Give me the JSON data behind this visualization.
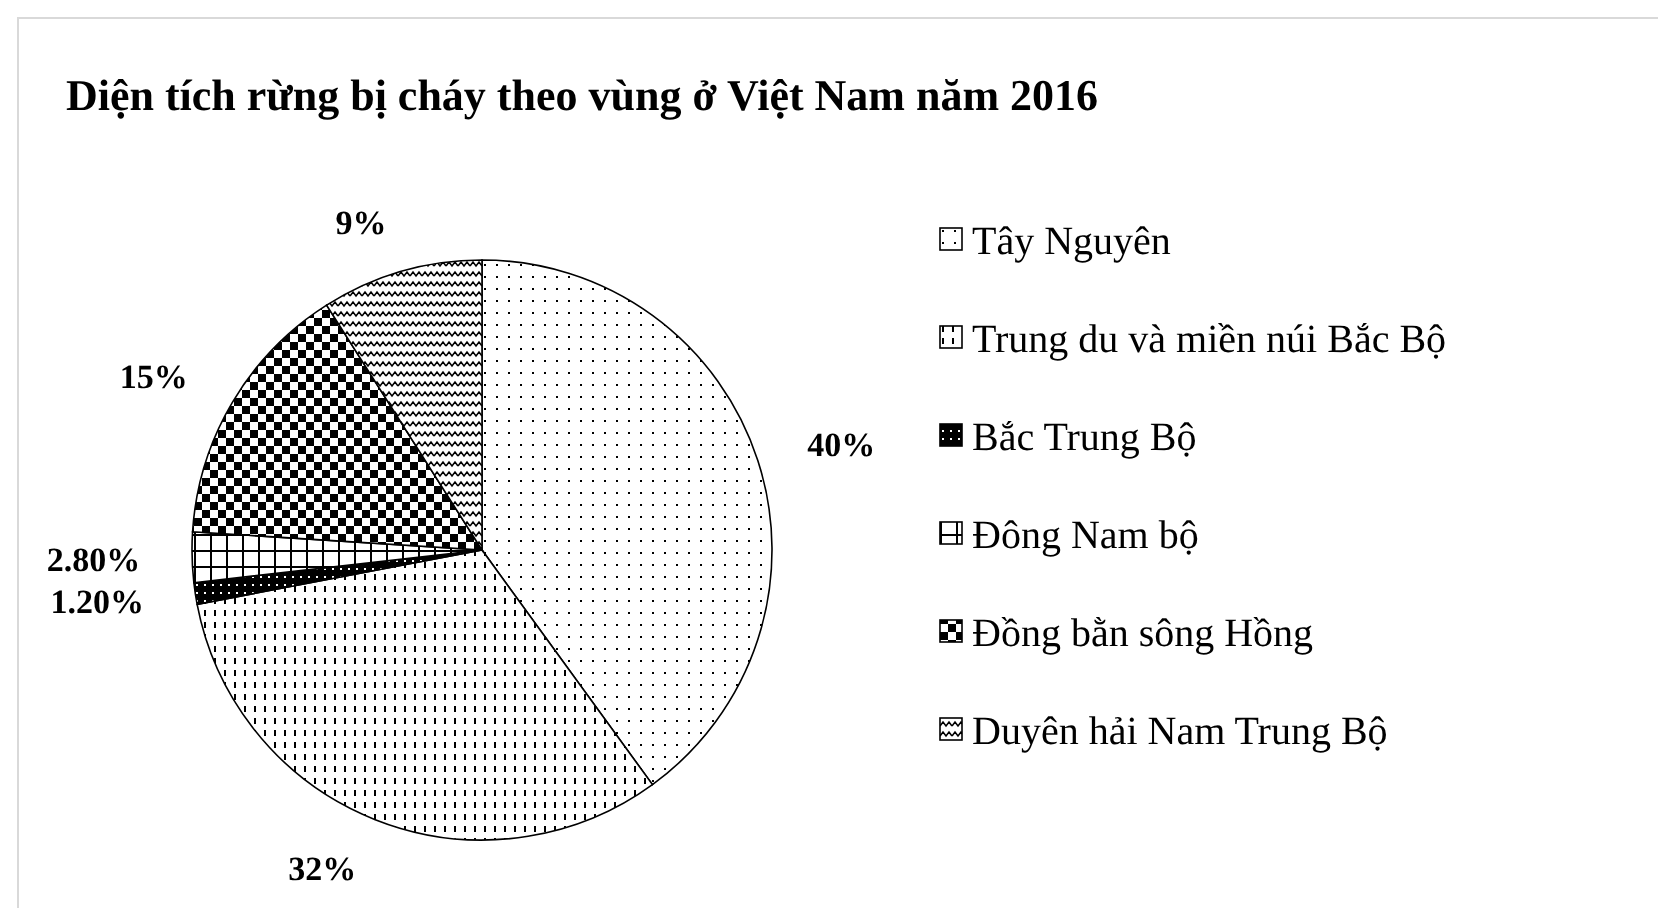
{
  "chart_data": {
    "type": "pie",
    "title": "Diện tích rừng bị cháy theo vùng ở Việt Nam năm 2016",
    "categories": [
      "Tây Nguyên",
      "Trung du và miền núi Bắc Bộ",
      "Bắc Trung Bộ",
      "Đông Nam bộ",
      "Đồng bằn sông Hồng",
      "Duyên hải Nam Trung Bộ"
    ],
    "values": [
      40,
      32,
      1.2,
      2.8,
      15,
      9
    ],
    "value_labels": [
      "40%",
      "32%",
      "1.20%",
      "2.80%",
      "15%",
      "9%"
    ],
    "colors": [
      "#000000",
      "#000000",
      "#000000",
      "#000000",
      "#000000",
      "#000000"
    ],
    "legend": "right"
  }
}
